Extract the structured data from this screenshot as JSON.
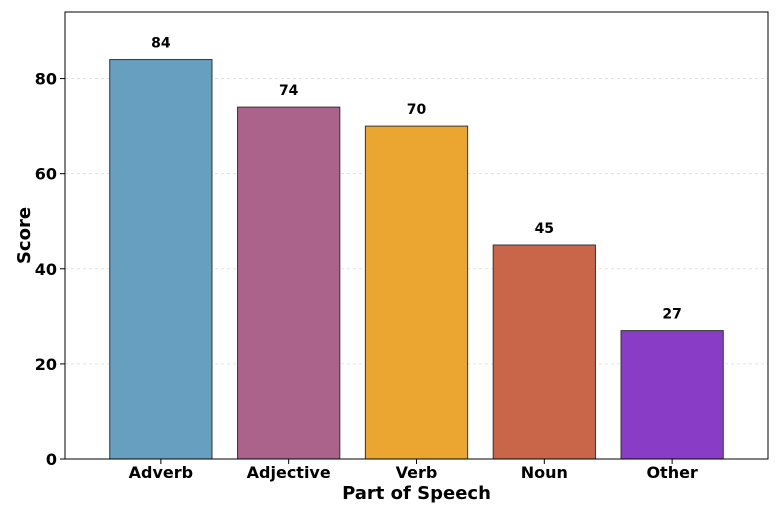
{
  "chart_data": {
    "type": "bar",
    "title": "",
    "xlabel": "Part of Speech",
    "ylabel": "Score",
    "categories": [
      "Adverb",
      "Adjective",
      "Verb",
      "Noun",
      "Other"
    ],
    "values": [
      84,
      74,
      70,
      45,
      27
    ],
    "data_labels": [
      "84",
      "74",
      "70",
      "45",
      "27"
    ],
    "colors": [
      "#669fbf",
      "#ab638c",
      "#eba531",
      "#c9664a",
      "#893cc6"
    ],
    "ylim": [
      0,
      94
    ],
    "yticks": [
      0,
      20,
      40,
      60,
      80
    ],
    "ytick_labels": [
      "0",
      "20",
      "40",
      "60",
      "80"
    ],
    "grid": "horizontal dashed",
    "legend": "none"
  }
}
